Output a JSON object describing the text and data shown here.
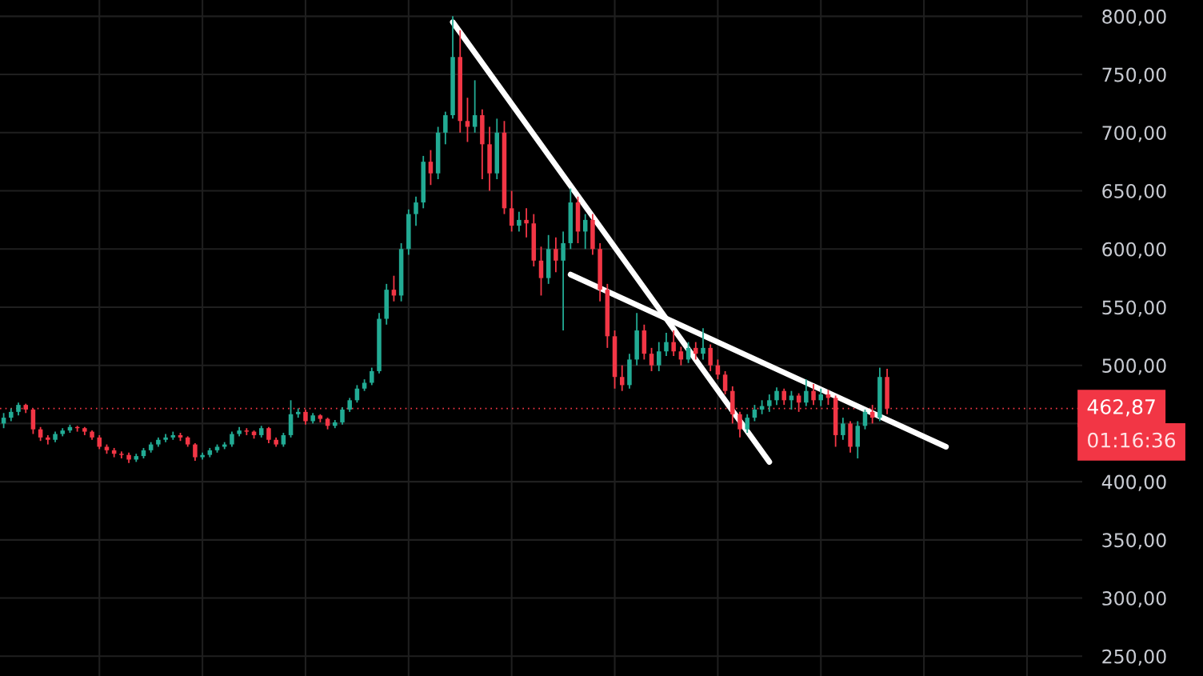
{
  "chart_data": {
    "type": "candlestick",
    "categories": [
      null,
      null,
      null,
      null,
      null,
      null,
      null,
      null,
      null,
      null,
      null,
      null,
      null,
      null,
      null,
      null,
      null,
      null,
      null,
      null,
      null,
      null,
      null,
      null,
      null,
      null,
      null,
      null,
      null,
      null,
      null,
      null,
      null,
      null,
      null,
      null,
      null,
      null,
      null,
      null,
      null,
      null,
      null,
      null,
      null,
      null,
      null,
      null,
      null,
      null,
      null,
      null,
      null,
      null,
      null,
      null,
      null,
      null,
      null,
      null,
      null,
      null,
      null,
      null,
      null,
      null,
      null,
      null,
      null,
      null,
      null,
      null,
      null,
      null,
      null,
      null,
      null,
      null,
      null,
      null,
      null,
      null,
      null,
      null,
      null,
      null,
      null,
      null,
      null,
      null,
      null,
      null,
      null,
      null,
      null,
      null,
      null,
      null,
      null,
      null,
      null,
      null,
      null,
      null,
      null,
      null,
      null,
      null,
      null,
      null,
      null,
      null,
      null,
      null,
      null,
      null,
      null,
      null,
      null,
      null,
      null,
      null,
      null,
      null,
      null,
      null,
      null,
      null,
      null,
      null,
      null,
      null,
      null,
      null,
      null,
      null,
      null,
      null,
      null,
      null,
      null,
      null,
      null,
      null,
      null,
      null,
      null
    ],
    "ohlc": [
      [
        450,
        459,
        446,
        455
      ],
      [
        455,
        463,
        452,
        460
      ],
      [
        460,
        468,
        457,
        466
      ],
      [
        466,
        467,
        459,
        462
      ],
      [
        462,
        463,
        441,
        445
      ],
      [
        445,
        447,
        435,
        438
      ],
      [
        438,
        440,
        432,
        436
      ],
      [
        436,
        443,
        434,
        441
      ],
      [
        441,
        446,
        439,
        444
      ],
      [
        444,
        449,
        442,
        447
      ],
      [
        447,
        448,
        443,
        446
      ],
      [
        446,
        447,
        440,
        443
      ],
      [
        443,
        444,
        436,
        438
      ],
      [
        438,
        440,
        428,
        430
      ],
      [
        430,
        432,
        424,
        427
      ],
      [
        427,
        429,
        421,
        424
      ],
      [
        424,
        426,
        420,
        423
      ],
      [
        423,
        425,
        416,
        419
      ],
      [
        419,
        424,
        417,
        422
      ],
      [
        422,
        429,
        420,
        427
      ],
      [
        427,
        434,
        425,
        432
      ],
      [
        432,
        438,
        430,
        436
      ],
      [
        436,
        441,
        434,
        438
      ],
      [
        438,
        443,
        436,
        440
      ],
      [
        440,
        442,
        435,
        438
      ],
      [
        438,
        439,
        430,
        432
      ],
      [
        432,
        433,
        418,
        421
      ],
      [
        421,
        425,
        419,
        423
      ],
      [
        423,
        429,
        421,
        427
      ],
      [
        427,
        432,
        425,
        430
      ],
      [
        430,
        434,
        428,
        432
      ],
      [
        432,
        443,
        430,
        441
      ],
      [
        441,
        447,
        439,
        444
      ],
      [
        444,
        446,
        440,
        443
      ],
      [
        443,
        444,
        437,
        440
      ],
      [
        440,
        448,
        438,
        446
      ],
      [
        446,
        447,
        433,
        436
      ],
      [
        436,
        438,
        430,
        432
      ],
      [
        432,
        442,
        430,
        440
      ],
      [
        440,
        470,
        438,
        458
      ],
      [
        458,
        463,
        455,
        460
      ],
      [
        460,
        462,
        449,
        452
      ],
      [
        452,
        459,
        450,
        457
      ],
      [
        457,
        458,
        451,
        454
      ],
      [
        454,
        455,
        445,
        448
      ],
      [
        448,
        453,
        446,
        451
      ],
      [
        451,
        464,
        449,
        462
      ],
      [
        462,
        472,
        460,
        470
      ],
      [
        470,
        483,
        468,
        480
      ],
      [
        480,
        488,
        478,
        485
      ],
      [
        485,
        498,
        483,
        495
      ],
      [
        495,
        545,
        493,
        540
      ],
      [
        540,
        570,
        535,
        565
      ],
      [
        565,
        577,
        555,
        560
      ],
      [
        560,
        605,
        555,
        600
      ],
      [
        600,
        634,
        595,
        630
      ],
      [
        630,
        645,
        620,
        640
      ],
      [
        640,
        680,
        635,
        675
      ],
      [
        675,
        685,
        655,
        665
      ],
      [
        665,
        705,
        660,
        700
      ],
      [
        700,
        718,
        690,
        715
      ],
      [
        715,
        800,
        712,
        765
      ],
      [
        765,
        788,
        700,
        710
      ],
      [
        710,
        730,
        692,
        705
      ],
      [
        705,
        745,
        700,
        715
      ],
      [
        715,
        720,
        660,
        690
      ],
      [
        690,
        705,
        650,
        665
      ],
      [
        665,
        712,
        660,
        700
      ],
      [
        700,
        710,
        630,
        635
      ],
      [
        635,
        650,
        615,
        620
      ],
      [
        620,
        632,
        615,
        625
      ],
      [
        625,
        635,
        610,
        622
      ],
      [
        622,
        630,
        585,
        590
      ],
      [
        590,
        602,
        560,
        575
      ],
      [
        575,
        612,
        570,
        600
      ],
      [
        600,
        610,
        580,
        590
      ],
      [
        590,
        615,
        530,
        605
      ],
      [
        605,
        652,
        600,
        640
      ],
      [
        640,
        645,
        605,
        615
      ],
      [
        615,
        630,
        600,
        625
      ],
      [
        625,
        630,
        595,
        600
      ],
      [
        600,
        605,
        555,
        565
      ],
      [
        565,
        570,
        515,
        525
      ],
      [
        525,
        530,
        480,
        490
      ],
      [
        490,
        500,
        478,
        483
      ],
      [
        483,
        510,
        480,
        505
      ],
      [
        505,
        545,
        500,
        530
      ],
      [
        530,
        535,
        505,
        510
      ],
      [
        510,
        515,
        495,
        500
      ],
      [
        500,
        520,
        495,
        512
      ],
      [
        512,
        528,
        508,
        520
      ],
      [
        520,
        530,
        508,
        512
      ],
      [
        512,
        516,
        500,
        505
      ],
      [
        505,
        520,
        502,
        515
      ],
      [
        515,
        520,
        505,
        510
      ],
      [
        510,
        532,
        505,
        515
      ],
      [
        515,
        518,
        495,
        500
      ],
      [
        500,
        505,
        488,
        492
      ],
      [
        492,
        495,
        475,
        478
      ],
      [
        478,
        482,
        450,
        458
      ],
      [
        458,
        460,
        438,
        445
      ],
      [
        445,
        458,
        442,
        455
      ],
      [
        455,
        466,
        452,
        462
      ],
      [
        462,
        470,
        458,
        465
      ],
      [
        465,
        475,
        460,
        470
      ],
      [
        470,
        481,
        466,
        478
      ],
      [
        478,
        480,
        466,
        470
      ],
      [
        470,
        478,
        462,
        474
      ],
      [
        474,
        476,
        460,
        468
      ],
      [
        468,
        488,
        465,
        478
      ],
      [
        478,
        484,
        466,
        470
      ],
      [
        470,
        480,
        465,
        475
      ],
      [
        475,
        479,
        466,
        472
      ],
      [
        472,
        474,
        430,
        440
      ],
      [
        440,
        455,
        436,
        450
      ],
      [
        450,
        452,
        425,
        430
      ],
      [
        430,
        452,
        420,
        448
      ],
      [
        448,
        462,
        445,
        460
      ],
      [
        460,
        466,
        450,
        455
      ],
      [
        455,
        498,
        452,
        490
      ],
      [
        490,
        497,
        458,
        462.87
      ],
      null,
      null,
      null,
      null,
      null,
      null,
      null,
      null,
      null,
      null,
      null,
      null,
      null,
      null,
      null,
      null,
      null,
      null,
      null,
      null,
      null,
      null,
      null,
      null,
      null,
      null
    ],
    "colors": [
      "#22ab94",
      "#22ab94",
      "#22ab94",
      "#f23645",
      "#f23645",
      "#f23645",
      "#f23645",
      "#22ab94",
      "#22ab94",
      "#22ab94",
      "#f23645",
      "#f23645",
      "#f23645",
      "#f23645",
      "#f23645",
      "#f23645",
      "#f23645",
      "#f23645",
      "#22ab94",
      "#22ab94",
      "#22ab94",
      "#22ab94",
      "#22ab94",
      "#22ab94",
      "#f23645",
      "#f23645",
      "#f23645",
      "#22ab94",
      "#22ab94",
      "#22ab94",
      "#22ab94",
      "#22ab94",
      "#22ab94",
      "#f23645",
      "#f23645",
      "#22ab94",
      "#f23645",
      "#f23645",
      "#22ab94",
      "#22ab94",
      "#22ab94",
      "#f23645",
      "#22ab94",
      "#f23645",
      "#f23645",
      "#22ab94",
      "#22ab94",
      "#22ab94",
      "#22ab94",
      "#22ab94",
      "#22ab94",
      "#22ab94",
      "#22ab94",
      "#f23645",
      "#22ab94",
      "#22ab94",
      "#22ab94",
      "#22ab94",
      "#f23645",
      "#22ab94",
      "#22ab94",
      "#22ab94",
      "#f23645",
      "#f23645",
      "#22ab94",
      "#f23645",
      "#f23645",
      "#22ab94",
      "#f23645",
      "#f23645",
      "#22ab94",
      "#f23645",
      "#f23645",
      "#f23645",
      "#22ab94",
      "#f23645",
      "#22ab94",
      "#22ab94",
      "#f23645",
      "#22ab94",
      "#f23645",
      "#f23645",
      "#f23645",
      "#f23645",
      "#f23645",
      "#22ab94",
      "#22ab94",
      "#f23645",
      "#f23645",
      "#22ab94",
      "#22ab94",
      "#f23645",
      "#f23645",
      "#22ab94",
      "#f23645",
      "#22ab94",
      "#f23645",
      "#f23645",
      "#f23645",
      "#f23645",
      "#f23645",
      "#22ab94",
      "#22ab94",
      "#22ab94",
      "#22ab94",
      "#22ab94",
      "#f23645",
      "#22ab94",
      "#f23645",
      "#22ab94",
      "#f23645",
      "#22ab94",
      "#f23645",
      "#f23645",
      "#22ab94",
      "#f23645",
      "#22ab94",
      "#22ab94",
      "#f23645",
      "#22ab94",
      "#f23645",
      null,
      null,
      null,
      null,
      null,
      null,
      null,
      null,
      null,
      null,
      null,
      null,
      null,
      null,
      null,
      null,
      null,
      null,
      null,
      null,
      null,
      null,
      null,
      null,
      null,
      null
    ],
    "series": [
      {
        "type": "line",
        "color": "#ffffff",
        "values": [
          null,
          null,
          null,
          null,
          null,
          null,
          null,
          null,
          null,
          null,
          null,
          null,
          null,
          null,
          null,
          null,
          null,
          null,
          null,
          null,
          null,
          null,
          null,
          null,
          null,
          null,
          null,
          null,
          null,
          null,
          null,
          null,
          null,
          null,
          null,
          null,
          null,
          null,
          null,
          null,
          null,
          null,
          null,
          null,
          null,
          null,
          null,
          null,
          null,
          null,
          null,
          null,
          null,
          null,
          null,
          null,
          null,
          null,
          null,
          null,
          null,
          795,
          null,
          null,
          null,
          null,
          null,
          null,
          null,
          null,
          null,
          null,
          null,
          null,
          null,
          null,
          null,
          null,
          null,
          null,
          null,
          null,
          null,
          null,
          null,
          null,
          null,
          null,
          null,
          null,
          null,
          null,
          null,
          null,
          null,
          null,
          null,
          null,
          null,
          null,
          null,
          null,
          null,
          null,
          417,
          null,
          null,
          null,
          null,
          null,
          null,
          null,
          null,
          null,
          null,
          null,
          null,
          null,
          null,
          null,
          null,
          null,
          null,
          null,
          null,
          null,
          null,
          null,
          null,
          null,
          null,
          null,
          null,
          null,
          null,
          null,
          null,
          null,
          null,
          null,
          null,
          null,
          null,
          null,
          null,
          null,
          null
        ]
      },
      {
        "type": "line",
        "color": "#ffffff",
        "values": [
          null,
          null,
          null,
          null,
          null,
          null,
          null,
          null,
          null,
          null,
          null,
          null,
          null,
          null,
          null,
          null,
          null,
          null,
          null,
          null,
          null,
          null,
          null,
          null,
          null,
          null,
          null,
          null,
          null,
          null,
          null,
          null,
          null,
          null,
          null,
          null,
          null,
          null,
          null,
          null,
          null,
          null,
          null,
          null,
          null,
          null,
          null,
          null,
          null,
          null,
          null,
          null,
          null,
          null,
          null,
          null,
          null,
          null,
          null,
          null,
          null,
          null,
          null,
          null,
          null,
          null,
          null,
          null,
          null,
          null,
          null,
          null,
          null,
          null,
          null,
          null,
          null,
          578,
          null,
          null,
          null,
          null,
          null,
          null,
          null,
          null,
          null,
          null,
          null,
          null,
          null,
          null,
          null,
          null,
          null,
          null,
          null,
          null,
          null,
          null,
          null,
          null,
          null,
          null,
          null,
          null,
          null,
          null,
          null,
          null,
          null,
          null,
          null,
          null,
          null,
          null,
          null,
          null,
          null,
          null,
          null,
          null,
          null,
          null,
          null,
          null,
          null,
          null,
          430,
          null,
          null,
          null,
          null,
          null,
          null,
          null,
          null,
          null,
          null,
          null,
          null,
          null,
          null,
          null,
          null,
          null,
          null
        ]
      }
    ],
    "ylim": [
      233,
      814
    ],
    "yticks": [
      {
        "value": 250,
        "label": "250,00"
      },
      {
        "value": 300,
        "label": "300,00"
      },
      {
        "value": 350,
        "label": "350,00"
      },
      {
        "value": 400,
        "label": "400,00"
      },
      {
        "value": 450,
        "label": null
      },
      {
        "value": 500,
        "label": "500,00"
      },
      {
        "value": 550,
        "label": "550,00"
      },
      {
        "value": 600,
        "label": "600,00"
      },
      {
        "value": 650,
        "label": "650,00"
      },
      {
        "value": 700,
        "label": "700,00"
      },
      {
        "value": 750,
        "label": "750,00"
      },
      {
        "value": 800,
        "label": "800,00"
      }
    ],
    "ref_lines": [
      {
        "axis": "y",
        "value": 462.87,
        "label": "462,87",
        "color": "#f23645",
        "line_style": "dotted"
      }
    ],
    "annotations": [
      "01:16:36"
    ],
    "tick_labels": "y",
    "grid": true
  }
}
